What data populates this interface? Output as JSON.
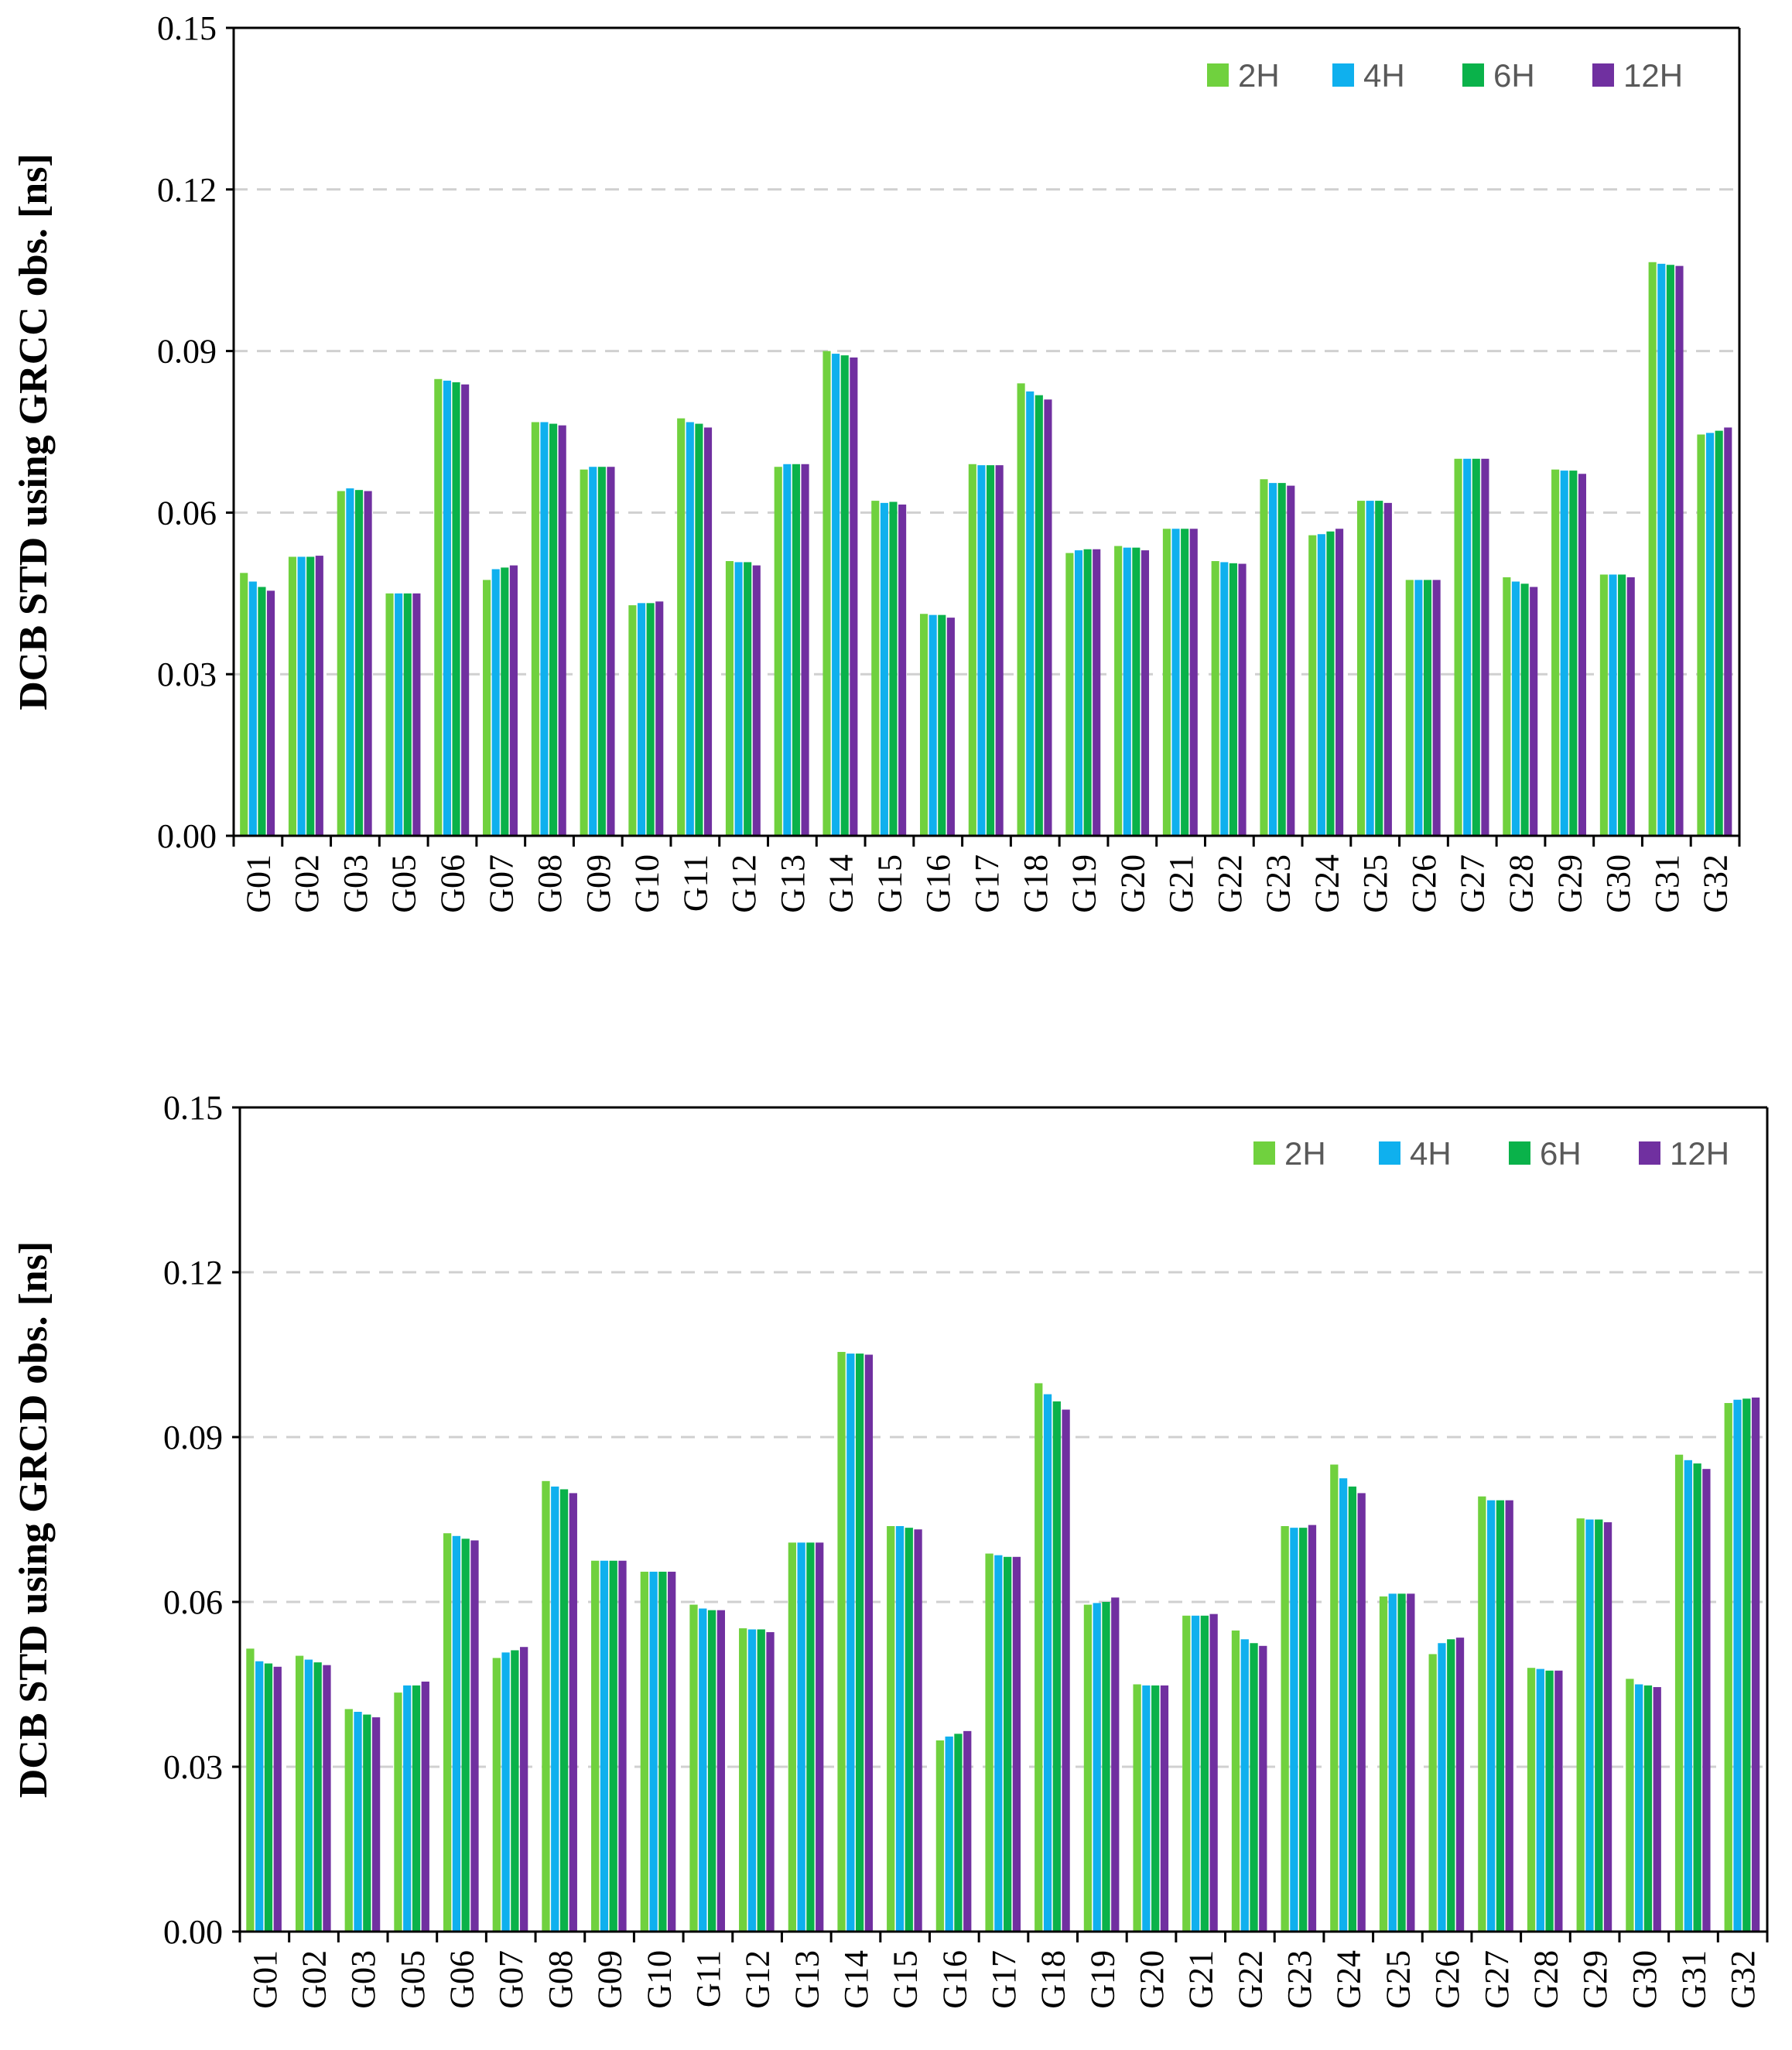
{
  "chart_data": [
    {
      "type": "bar",
      "ylabel": "DCB STD using GRCC obs. [ns]",
      "xlabel": "",
      "ylim": [
        0,
        0.15
      ],
      "yticks": [
        "0.00",
        "0.03",
        "0.06",
        "0.09",
        "0.12",
        "0.15"
      ],
      "grid": "horizontal dashed",
      "legend_position": "top-right",
      "categories": [
        "G01",
        "G02",
        "G03",
        "G05",
        "G06",
        "G07",
        "G08",
        "G09",
        "G10",
        "G11",
        "G12",
        "G13",
        "G14",
        "G15",
        "G16",
        "G17",
        "G18",
        "G19",
        "G20",
        "G21",
        "G22",
        "G23",
        "G24",
        "G25",
        "G26",
        "G27",
        "G28",
        "G29",
        "G30",
        "G31",
        "G32"
      ],
      "series": [
        {
          "name": "2H",
          "color": "#70d13e",
          "values": [
            0.0488,
            0.0518,
            0.064,
            0.045,
            0.0848,
            0.0475,
            0.0768,
            0.068,
            0.0428,
            0.0775,
            0.051,
            0.0685,
            0.09,
            0.0622,
            0.0412,
            0.069,
            0.084,
            0.0525,
            0.0538,
            0.057,
            0.051,
            0.0662,
            0.0558,
            0.0622,
            0.0475,
            0.07,
            0.048,
            0.068,
            0.0485,
            0.1065,
            0.0745
          ]
        },
        {
          "name": "4H",
          "color": "#0fb0ee",
          "values": [
            0.0472,
            0.0518,
            0.0645,
            0.045,
            0.0845,
            0.0495,
            0.0768,
            0.0685,
            0.0432,
            0.0768,
            0.0508,
            0.069,
            0.0895,
            0.0618,
            0.041,
            0.0688,
            0.0825,
            0.053,
            0.0535,
            0.057,
            0.0508,
            0.0655,
            0.056,
            0.0622,
            0.0475,
            0.07,
            0.0472,
            0.0678,
            0.0485,
            0.1062,
            0.0748
          ]
        },
        {
          "name": "6H",
          "color": "#0ab24a",
          "values": [
            0.0462,
            0.0518,
            0.0642,
            0.045,
            0.0842,
            0.0498,
            0.0765,
            0.0685,
            0.0432,
            0.0765,
            0.0508,
            0.069,
            0.0892,
            0.062,
            0.041,
            0.0688,
            0.0818,
            0.0532,
            0.0535,
            0.057,
            0.0506,
            0.0655,
            0.0565,
            0.0622,
            0.0475,
            0.07,
            0.0468,
            0.0678,
            0.0485,
            0.106,
            0.0752
          ]
        },
        {
          "name": "12H",
          "color": "#7030a0",
          "values": [
            0.0455,
            0.052,
            0.064,
            0.045,
            0.0838,
            0.0502,
            0.0762,
            0.0685,
            0.0435,
            0.0758,
            0.0502,
            0.069,
            0.0888,
            0.0615,
            0.0405,
            0.0688,
            0.081,
            0.0532,
            0.053,
            0.057,
            0.0505,
            0.065,
            0.057,
            0.0618,
            0.0475,
            0.07,
            0.0462,
            0.0672,
            0.048,
            0.1058,
            0.0758
          ]
        }
      ]
    },
    {
      "type": "bar",
      "ylabel": "DCB STD using GRCD obs. [ns]",
      "xlabel": "",
      "ylim": [
        0,
        0.15
      ],
      "yticks": [
        "0.00",
        "0.03",
        "0.06",
        "0.09",
        "0.12",
        "0.15"
      ],
      "grid": "horizontal dashed",
      "legend_position": "top-right",
      "categories": [
        "G01",
        "G02",
        "G03",
        "G05",
        "G06",
        "G07",
        "G08",
        "G09",
        "G10",
        "G11",
        "G12",
        "G13",
        "G14",
        "G15",
        "G16",
        "G17",
        "G18",
        "G19",
        "G20",
        "G21",
        "G22",
        "G23",
        "G24",
        "G25",
        "G26",
        "G27",
        "G28",
        "G29",
        "G30",
        "G31",
        "G32"
      ],
      "series": [
        {
          "name": "2H",
          "color": "#70d13e",
          "values": [
            0.0515,
            0.0502,
            0.0405,
            0.0435,
            0.0725,
            0.0498,
            0.082,
            0.0675,
            0.0655,
            0.0595,
            0.0552,
            0.0708,
            0.1055,
            0.0738,
            0.0348,
            0.0688,
            0.0998,
            0.0595,
            0.045,
            0.0575,
            0.0548,
            0.0738,
            0.085,
            0.061,
            0.0505,
            0.0792,
            0.048,
            0.0752,
            0.046,
            0.0868,
            0.0962
          ]
        },
        {
          "name": "4H",
          "color": "#0fb0ee",
          "values": [
            0.0492,
            0.0495,
            0.04,
            0.0448,
            0.072,
            0.0508,
            0.081,
            0.0675,
            0.0655,
            0.0588,
            0.055,
            0.0708,
            0.1052,
            0.0738,
            0.0355,
            0.0685,
            0.0978,
            0.0598,
            0.0448,
            0.0575,
            0.0532,
            0.0735,
            0.0825,
            0.0615,
            0.0525,
            0.0785,
            0.0478,
            0.075,
            0.045,
            0.0858,
            0.0968
          ]
        },
        {
          "name": "6H",
          "color": "#0ab24a",
          "values": [
            0.0488,
            0.049,
            0.0395,
            0.0448,
            0.0715,
            0.0512,
            0.0805,
            0.0675,
            0.0655,
            0.0585,
            0.055,
            0.0708,
            0.1052,
            0.0735,
            0.036,
            0.0682,
            0.0965,
            0.06,
            0.0448,
            0.0575,
            0.0525,
            0.0735,
            0.081,
            0.0615,
            0.0532,
            0.0785,
            0.0475,
            0.075,
            0.0448,
            0.0852,
            0.097
          ]
        },
        {
          "name": "12H",
          "color": "#7030a0",
          "values": [
            0.0482,
            0.0485,
            0.039,
            0.0455,
            0.0712,
            0.0518,
            0.0798,
            0.0675,
            0.0655,
            0.0585,
            0.0545,
            0.0708,
            0.105,
            0.0732,
            0.0365,
            0.0682,
            0.095,
            0.0608,
            0.0448,
            0.0578,
            0.052,
            0.074,
            0.0798,
            0.0615,
            0.0535,
            0.0785,
            0.0475,
            0.0745,
            0.0445,
            0.0842,
            0.0972
          ]
        }
      ]
    }
  ]
}
